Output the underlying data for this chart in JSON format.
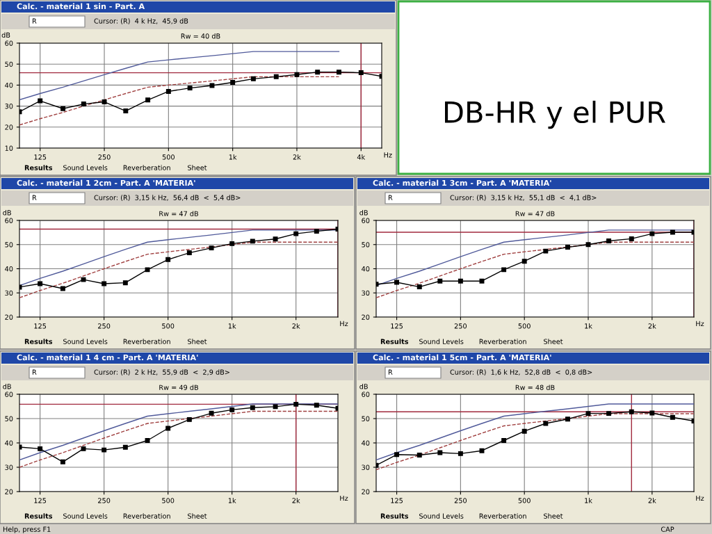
{
  "chart_data": [
    {
      "type": "line",
      "title": "Calc. - material 1 sin - Part. A",
      "subtitle": "Cursor: (R)  4 k Hz,  45,9 dB",
      "xlabel": "Hz",
      "ylabel": "dB",
      "annotations": [
        "Rw = 40 dB",
        "R",
        "Results",
        "Sound Levels",
        "Reverberation",
        "Sheet"
      ],
      "log": "x",
      "grid": true,
      "x": [
        100,
        125,
        160,
        200,
        250,
        315,
        400,
        500,
        630,
        800,
        1000,
        1250,
        1600,
        2000,
        2500,
        3150,
        4000,
        5000
      ],
      "xlim": [
        100,
        5000
      ],
      "ylim": [
        10,
        60
      ],
      "xticks": [
        {
          "value": 125,
          "label": "125"
        },
        {
          "value": 250,
          "label": "250"
        },
        {
          "value": 500,
          "label": "500"
        },
        {
          "value": 1000,
          "label": "1k"
        },
        {
          "value": 2000,
          "label": "2k"
        },
        {
          "value": 4000,
          "label": "4k"
        }
      ],
      "yticks": [
        10,
        20,
        30,
        40,
        50,
        60
      ],
      "ref_lines": [
        {
          "axis": "y",
          "value": 45.9,
          "color": "#a0283c"
        },
        {
          "axis": "x",
          "value": 4000,
          "color": "#a0283c"
        }
      ],
      "series": [
        {
          "color": "#505a9a",
          "marker": "none",
          "line_style": "solid",
          "x": [
            100,
            125,
            160,
            200,
            250,
            315,
            400,
            500,
            630,
            800,
            1000,
            1250,
            1600,
            2000,
            2500,
            3150
          ],
          "values": [
            33,
            36,
            39,
            42,
            45,
            48,
            51,
            52,
            53,
            54,
            55,
            56,
            56,
            56,
            56,
            56
          ]
        },
        {
          "color": "#a04040",
          "marker": "none",
          "line_style": "dashed",
          "x": [
            100,
            125,
            160,
            200,
            250,
            315,
            400,
            500,
            630,
            800,
            1000,
            1250,
            1600,
            2000,
            2500,
            3150
          ],
          "values": [
            21,
            24,
            27,
            30,
            33,
            36,
            39,
            40,
            41,
            42,
            43,
            44,
            44,
            44,
            44,
            44
          ]
        },
        {
          "color": "#000000",
          "marker": "square",
          "line_style": "solid",
          "values": [
            27.3,
            32.5,
            28.8,
            31,
            32,
            27.7,
            32.9,
            37,
            38.6,
            39.8,
            41.3,
            43,
            44,
            45,
            46.2,
            46.2,
            45.9,
            44.2
          ]
        }
      ]
    },
    {
      "type": "line",
      "title": "Calc. - material 1 2cm - Part. A 'MATERIA'",
      "subtitle": "Cursor: (R)  3,15 k Hz,  56,4 dB  <  5,4 dB>",
      "xlabel": "Hz",
      "ylabel": "dB",
      "annotations": [
        "Rw = 47 dB",
        "R",
        "Results",
        "Sound Levels",
        "Reverberation",
        "Sheet"
      ],
      "log": "x",
      "grid": true,
      "x": [
        100,
        125,
        160,
        200,
        250,
        315,
        400,
        500,
        630,
        800,
        1000,
        1250,
        1600,
        2000,
        2500,
        3150
      ],
      "xlim": [
        100,
        3150
      ],
      "ylim": [
        20,
        60
      ],
      "xticks": [
        {
          "value": 125,
          "label": "125"
        },
        {
          "value": 250,
          "label": "250"
        },
        {
          "value": 500,
          "label": "500"
        },
        {
          "value": 1000,
          "label": "1k"
        },
        {
          "value": 2000,
          "label": "2k"
        }
      ],
      "yticks": [
        20,
        30,
        40,
        50,
        60
      ],
      "ref_lines": [
        {
          "axis": "y",
          "value": 56.4,
          "color": "#a0283c"
        },
        {
          "axis": "x",
          "value": 3150,
          "color": "#a0283c"
        }
      ],
      "series": [
        {
          "color": "#505a9a",
          "marker": "none",
          "line_style": "solid",
          "values": [
            33,
            36,
            39,
            42,
            45,
            48,
            51,
            52,
            53,
            54,
            55,
            56,
            56,
            56,
            56,
            56
          ]
        },
        {
          "color": "#a04040",
          "marker": "none",
          "line_style": "dashed",
          "values": [
            28,
            31,
            34,
            37,
            40,
            43,
            46,
            47,
            48,
            49,
            50,
            51,
            51,
            51,
            51,
            51
          ]
        },
        {
          "color": "#000000",
          "marker": "square",
          "line_style": "solid",
          "values": [
            32.4,
            33.8,
            31.8,
            35.5,
            33.8,
            34.2,
            39.6,
            43.8,
            46.6,
            48.6,
            50.4,
            51.4,
            52.3,
            54.5,
            55.5,
            56.4
          ]
        }
      ]
    },
    {
      "type": "line",
      "title": "Calc. - material 1 3cm - Part. A 'MATERIA'",
      "subtitle": "Cursor: (R)  3,15 k Hz,  55,1 dB  <  4,1 dB>",
      "xlabel": "Hz",
      "ylabel": "dB",
      "annotations": [
        "Rw = 47 dB",
        "R",
        "Results",
        "Sound Levels",
        "Reverberation",
        "Sheet"
      ],
      "log": "x",
      "grid": true,
      "x": [
        100,
        125,
        160,
        200,
        250,
        315,
        400,
        500,
        630,
        800,
        1000,
        1250,
        1600,
        2000,
        2500,
        3150
      ],
      "xlim": [
        100,
        3150
      ],
      "ylim": [
        20,
        60
      ],
      "xticks": [
        {
          "value": 125,
          "label": "125"
        },
        {
          "value": 250,
          "label": "250"
        },
        {
          "value": 500,
          "label": "500"
        },
        {
          "value": 1000,
          "label": "1k"
        },
        {
          "value": 2000,
          "label": "2k"
        }
      ],
      "yticks": [
        20,
        30,
        40,
        50,
        60
      ],
      "ref_lines": [
        {
          "axis": "y",
          "value": 55.1,
          "color": "#a0283c"
        },
        {
          "axis": "x",
          "value": 3150,
          "color": "#a0283c"
        }
      ],
      "series": [
        {
          "color": "#505a9a",
          "marker": "none",
          "line_style": "solid",
          "values": [
            33,
            36,
            39,
            42,
            45,
            48,
            51,
            52,
            53,
            54,
            55,
            56,
            56,
            56,
            56,
            56
          ]
        },
        {
          "color": "#a04040",
          "marker": "none",
          "line_style": "dashed",
          "values": [
            28,
            31,
            34,
            37,
            40,
            43,
            46,
            47,
            48,
            49,
            50,
            51,
            51,
            51,
            51,
            51
          ]
        },
        {
          "color": "#000000",
          "marker": "square",
          "line_style": "solid",
          "values": [
            33.6,
            34.4,
            32.5,
            34.9,
            34.9,
            34.9,
            39.6,
            43.1,
            47.3,
            48.9,
            50,
            51.5,
            52.4,
            54.5,
            55.1,
            55.1
          ]
        }
      ]
    },
    {
      "type": "line",
      "title": "Calc. - material 1 4 cm - Part. A 'MATERIA'",
      "subtitle": "Cursor: (R)  2 k Hz,  55,9 dB  <  2,9 dB>",
      "xlabel": "Hz",
      "ylabel": "dB",
      "annotations": [
        "Rw = 49 dB",
        "R",
        "Results",
        "Sound Levels",
        "Reverberation",
        "Sheet"
      ],
      "log": "x",
      "grid": true,
      "x": [
        100,
        125,
        160,
        200,
        250,
        315,
        400,
        500,
        630,
        800,
        1000,
        1250,
        1600,
        2000,
        2500,
        3150
      ],
      "xlim": [
        100,
        3150
      ],
      "ylim": [
        20,
        60
      ],
      "xticks": [
        {
          "value": 125,
          "label": "125"
        },
        {
          "value": 250,
          "label": "250"
        },
        {
          "value": 500,
          "label": "500"
        },
        {
          "value": 1000,
          "label": "1k"
        },
        {
          "value": 2000,
          "label": "2k"
        }
      ],
      "yticks": [
        20,
        30,
        40,
        50,
        60
      ],
      "ref_lines": [
        {
          "axis": "y",
          "value": 55.9,
          "color": "#a0283c"
        },
        {
          "axis": "x",
          "value": 2000,
          "color": "#a0283c"
        }
      ],
      "series": [
        {
          "color": "#505a9a",
          "marker": "none",
          "line_style": "solid",
          "values": [
            33,
            36,
            39,
            42,
            45,
            48,
            51,
            52,
            53,
            54,
            55,
            56,
            56,
            56,
            56,
            56
          ]
        },
        {
          "color": "#a04040",
          "marker": "none",
          "line_style": "dashed",
          "values": [
            30,
            33,
            36,
            39,
            42,
            45,
            48,
            49,
            50,
            51,
            52,
            53,
            53,
            53,
            53,
            53
          ]
        },
        {
          "color": "#000000",
          "marker": "square",
          "line_style": "solid",
          "values": [
            38.3,
            37.6,
            32.2,
            37.6,
            37.1,
            38.2,
            41,
            46,
            49.6,
            52.2,
            53.6,
            54.5,
            54.9,
            55.9,
            55.5,
            54.2
          ]
        }
      ]
    },
    {
      "type": "line",
      "title": "Calc. - material 1 5cm - Part. A 'MATERIA'",
      "subtitle": "Cursor: (R)  1,6 k Hz,  52,8 dB  <  0,8 dB>",
      "xlabel": "Hz",
      "ylabel": "dB",
      "annotations": [
        "Rw = 48 dB",
        "R",
        "Results",
        "Sound Levels",
        "Reverberation",
        "Sheet"
      ],
      "log": "x",
      "grid": true,
      "x": [
        100,
        125,
        160,
        200,
        250,
        315,
        400,
        500,
        630,
        800,
        1000,
        1250,
        1600,
        2000,
        2500,
        3150
      ],
      "xlim": [
        100,
        3150
      ],
      "ylim": [
        20,
        60
      ],
      "xticks": [
        {
          "value": 125,
          "label": "125"
        },
        {
          "value": 250,
          "label": "250"
        },
        {
          "value": 500,
          "label": "500"
        },
        {
          "value": 1000,
          "label": "1k"
        },
        {
          "value": 2000,
          "label": "2k"
        }
      ],
      "yticks": [
        20,
        30,
        40,
        50,
        60
      ],
      "ref_lines": [
        {
          "axis": "y",
          "value": 52.8,
          "color": "#a0283c"
        },
        {
          "axis": "x",
          "value": 1600,
          "color": "#a0283c"
        }
      ],
      "series": [
        {
          "color": "#505a9a",
          "marker": "none",
          "line_style": "solid",
          "values": [
            33,
            36,
            39,
            42,
            45,
            48,
            51,
            52,
            53,
            54,
            55,
            56,
            56,
            56,
            56,
            56
          ]
        },
        {
          "color": "#a04040",
          "marker": "none",
          "line_style": "dashed",
          "values": [
            29,
            32,
            35,
            38,
            41,
            44,
            47,
            48,
            49,
            50,
            51,
            52,
            52,
            52,
            52,
            52
          ]
        },
        {
          "color": "#000000",
          "marker": "square",
          "line_style": "solid",
          "values": [
            30.8,
            35.2,
            35,
            36,
            35.6,
            36.8,
            41,
            44.8,
            48,
            49.8,
            52.1,
            52.1,
            52.8,
            52.3,
            50.5,
            49
          ]
        }
      ]
    },
    {
      "type": "other",
      "title": "DB-HR y el PUR",
      "annotations": [
        "Help, press F1",
        "CAP"
      ]
    }
  ]
}
